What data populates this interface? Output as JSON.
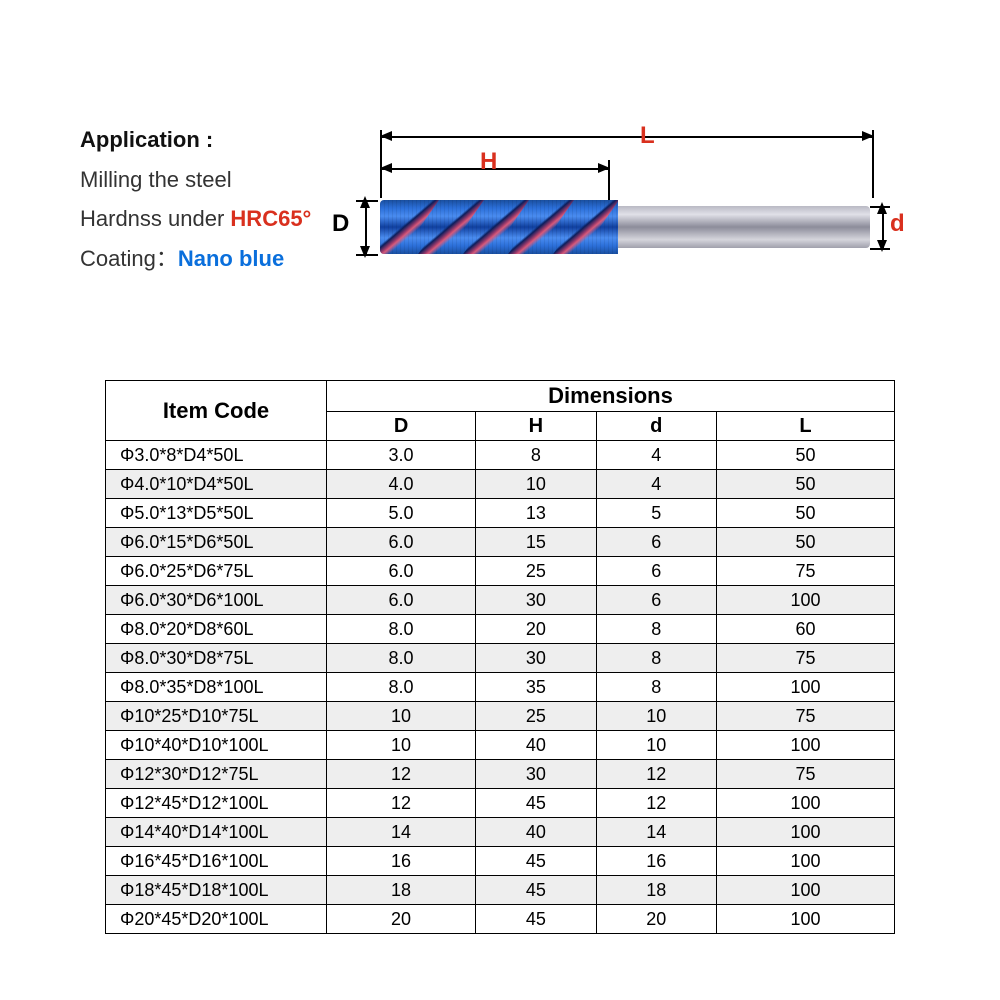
{
  "spec": {
    "application_label": "Application :",
    "application_line1": "Milling the steel",
    "hardness_prefix": "Hardnss under ",
    "hardness_value": "HRC65°",
    "coating_label": "Coating：",
    "coating_value": "Nano blue"
  },
  "diagram": {
    "label_L": "L",
    "label_H": "H",
    "label_D": "D",
    "label_d": "d",
    "color_accent": "#d9301e",
    "color_flute": "#2b6fd9",
    "color_shank": "#b9b9c4"
  },
  "table": {
    "header_item_code": "Item Code",
    "header_dimensions": "Dimensions",
    "columns": [
      "D",
      "H",
      "d",
      "L"
    ],
    "rows": [
      {
        "code": "Φ3.0*8*D4*50L",
        "D": "3.0",
        "H": "8",
        "d": "4",
        "L": "50"
      },
      {
        "code": "Φ4.0*10*D4*50L",
        "D": "4.0",
        "H": "10",
        "d": "4",
        "L": "50"
      },
      {
        "code": "Φ5.0*13*D5*50L",
        "D": "5.0",
        "H": "13",
        "d": "5",
        "L": "50"
      },
      {
        "code": "Φ6.0*15*D6*50L",
        "D": "6.0",
        "H": "15",
        "d": "6",
        "L": "50"
      },
      {
        "code": "Φ6.0*25*D6*75L",
        "D": "6.0",
        "H": "25",
        "d": "6",
        "L": "75"
      },
      {
        "code": "Φ6.0*30*D6*100L",
        "D": "6.0",
        "H": "30",
        "d": "6",
        "L": "100"
      },
      {
        "code": "Φ8.0*20*D8*60L",
        "D": "8.0",
        "H": "20",
        "d": "8",
        "L": "60"
      },
      {
        "code": "Φ8.0*30*D8*75L",
        "D": "8.0",
        "H": "30",
        "d": "8",
        "L": "75"
      },
      {
        "code": "Φ8.0*35*D8*100L",
        "D": "8.0",
        "H": "35",
        "d": "8",
        "L": "100"
      },
      {
        "code": "Φ10*25*D10*75L",
        "D": "10",
        "H": "25",
        "d": "10",
        "L": "75"
      },
      {
        "code": "Φ10*40*D10*100L",
        "D": "10",
        "H": "40",
        "d": "10",
        "L": "100"
      },
      {
        "code": "Φ12*30*D12*75L",
        "D": "12",
        "H": "30",
        "d": "12",
        "L": "75"
      },
      {
        "code": "Φ12*45*D12*100L",
        "D": "12",
        "H": "45",
        "d": "12",
        "L": "100"
      },
      {
        "code": "Φ14*40*D14*100L",
        "D": "14",
        "H": "40",
        "d": "14",
        "L": "100"
      },
      {
        "code": "Φ16*45*D16*100L",
        "D": "16",
        "H": "45",
        "d": "16",
        "L": "100"
      },
      {
        "code": "Φ18*45*D18*100L",
        "D": "18",
        "H": "45",
        "d": "18",
        "L": "100"
      },
      {
        "code": "Φ20*45*D20*100L",
        "D": "20",
        "H": "45",
        "d": "20",
        "L": "100"
      }
    ],
    "stripe_color": "#eeeeee",
    "border_color": "#000000"
  }
}
